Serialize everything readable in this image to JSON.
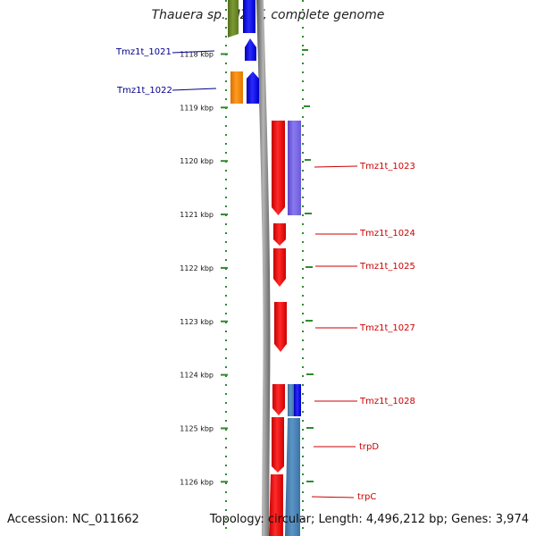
{
  "title": "Thauera sp. MZ1T, complete genome",
  "footer": {
    "accession": "Accession: NC_011662",
    "topology": "Topology: circular; Length: 4,496,212 bp; Genes: 3,974"
  },
  "colors": {
    "scale_tick": "#2e8b2e",
    "backbone": "#8a8a8a",
    "left_label": "#00008b",
    "right_label": "#cc0000",
    "gene_red": "#ff0000",
    "gene_blue": "#0000ff",
    "gene_purple": "#7b68ee",
    "gene_steel": "#4682b4",
    "gene_orange": "#ff8c00",
    "gene_olive": "#6b8e23"
  },
  "scale": {
    "unit": "kbp",
    "ticks": [
      1118,
      1119,
      1120,
      1121,
      1122,
      1123,
      1124,
      1125,
      1126
    ]
  },
  "left_labels": [
    {
      "text": "Tmz1t_1021",
      "color": "#00008b"
    },
    {
      "text": "Tmz1t_1022",
      "color": "#00008b"
    }
  ],
  "right_labels": [
    {
      "text": "Tmz1t_1023",
      "color": "#cc0000"
    },
    {
      "text": "Tmz1t_1024",
      "color": "#cc0000"
    },
    {
      "text": "Tmz1t_1025",
      "color": "#cc0000"
    },
    {
      "text": "Tmz1t_1027",
      "color": "#cc0000"
    },
    {
      "text": "Tmz1t_1028",
      "color": "#cc0000"
    },
    {
      "text": "trpD",
      "color": "#cc0000"
    },
    {
      "text": "trpC",
      "color": "#cc0000"
    }
  ]
}
